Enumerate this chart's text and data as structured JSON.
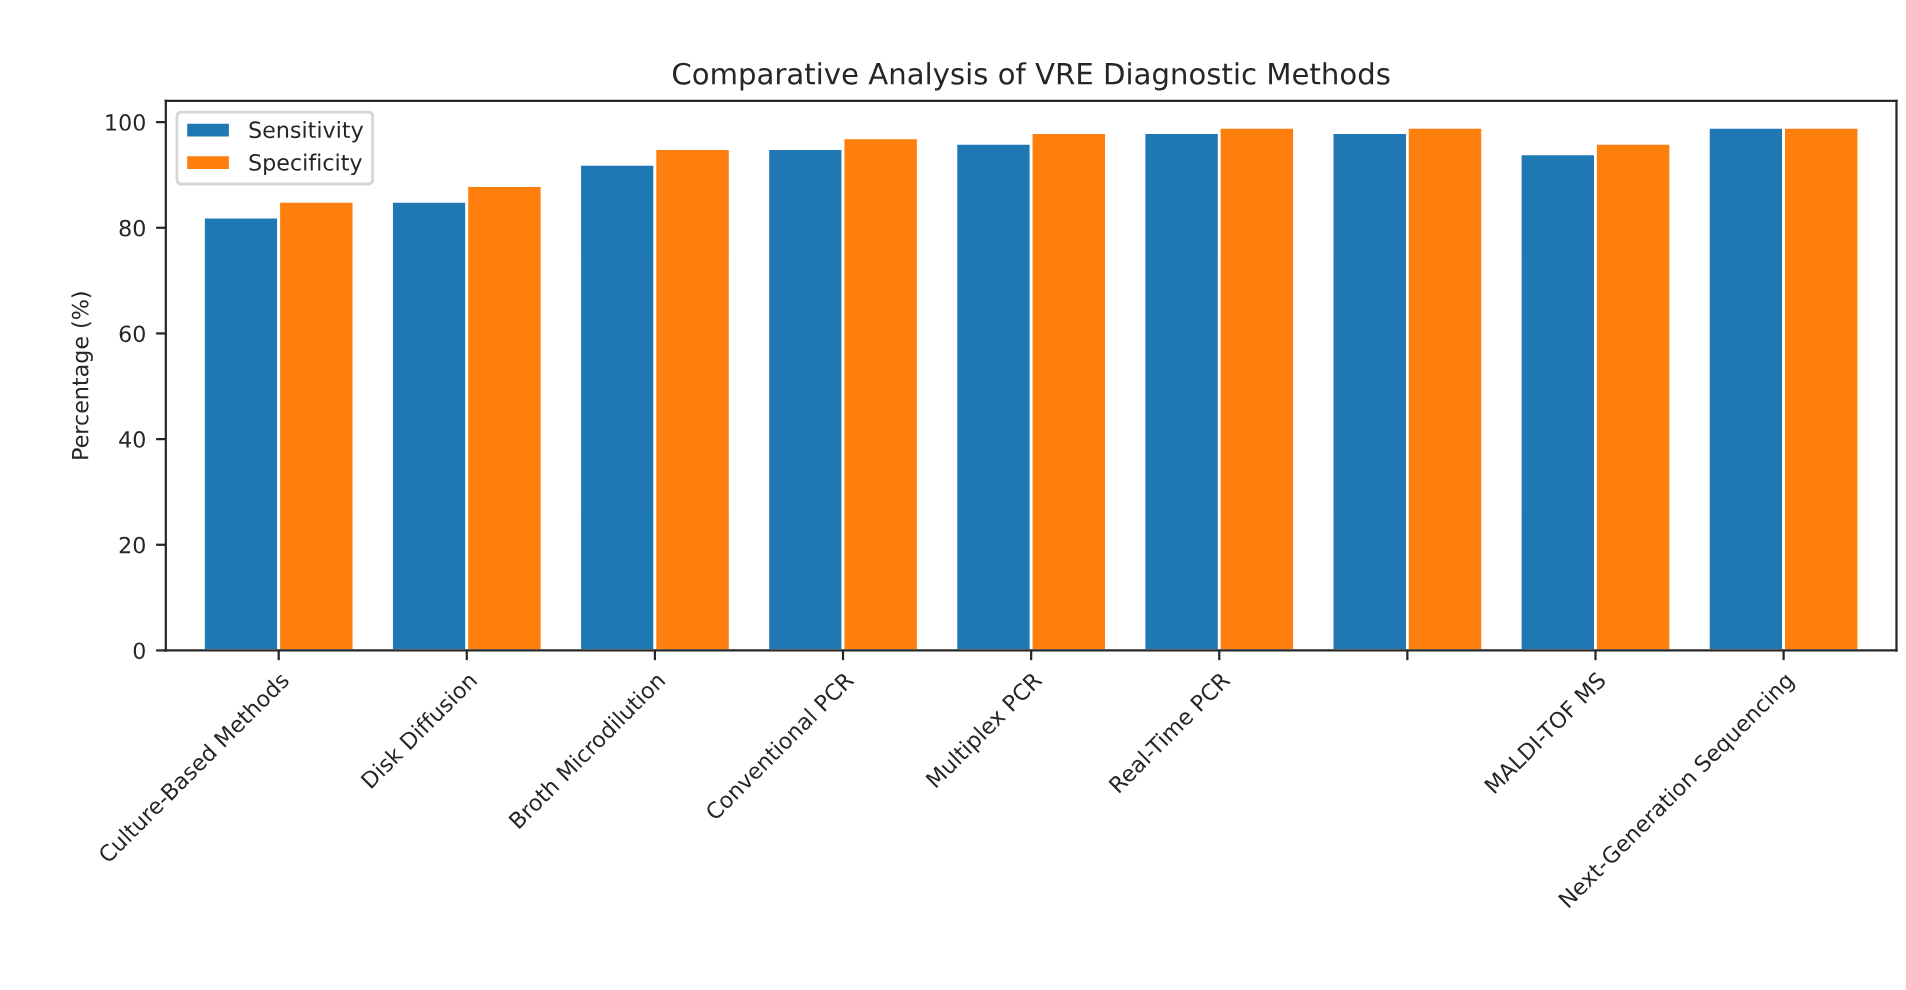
{
  "chart_data": {
    "type": "bar",
    "title": "Comparative Analysis of VRE Diagnostic Methods",
    "ylabel": "Percentage (%)",
    "categories": [
      "Culture-Based Methods",
      "Disk Diffusion",
      "Broth Microdilution",
      "Conventional PCR",
      "Multiplex PCR",
      "Real-Time PCR",
      null,
      "MALDI-TOF MS",
      "Next-Generation Sequencing"
    ],
    "series": [
      {
        "name": "Sensitivity",
        "color": "#1f77b4",
        "values": [
          82,
          85,
          92,
          95,
          96,
          98,
          98,
          94,
          99
        ]
      },
      {
        "name": "Specificity",
        "color": "#ff7f0e",
        "values": [
          85,
          88,
          95,
          97,
          98,
          99,
          99,
          96,
          99
        ]
      }
    ],
    "ylim": [
      0,
      104
    ],
    "yticks": [
      0,
      20,
      40,
      60,
      80,
      100
    ],
    "legend": "top left",
    "grid": false
  }
}
